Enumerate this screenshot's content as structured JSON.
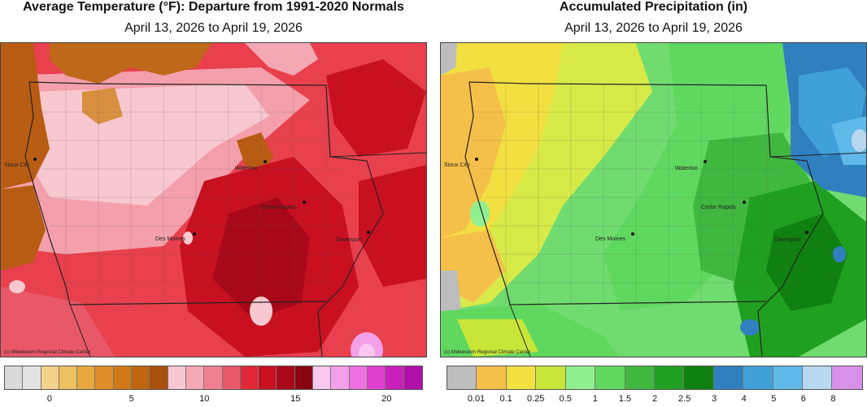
{
  "left_panel": {
    "title": "Average Temperature (°F): Departure from 1991-2020 Normals",
    "subtitle": "April 13, 2026 to April 19, 2026",
    "credit": "(c) Midwestern Regional Climate Center",
    "cities": [
      "Sioux City",
      "Waterloo",
      "Cedar Rapids",
      "Des Moines",
      "Davenport"
    ],
    "legend_colors": [
      "#d9d9d9",
      "#e3e3e3",
      "#f2d28a",
      "#efc060",
      "#e8a840",
      "#e08e28",
      "#d07818",
      "#bf6410",
      "#a8500c",
      "#f8c8d0",
      "#f4a8b4",
      "#ee8090",
      "#e85868",
      "#e02838",
      "#c81020",
      "#a80818",
      "#880410",
      "#f8c8f0",
      "#f4a0e8",
      "#ee70e0",
      "#e040d0",
      "#c820b8",
      "#b010a8"
    ],
    "legend_ticks": [
      "0",
      "5",
      "10",
      "15",
      "20"
    ],
    "legend_tick_positions_idx": [
      2,
      7,
      11,
      16,
      21
    ]
  },
  "right_panel": {
    "title": "Accumulated Precipitation (in)",
    "subtitle": "April 13, 2026 to April 19, 2026",
    "credit": "(c) Midwestern Regional Climate Center",
    "cities": [
      "Sioux City",
      "Waterloo",
      "Cedar Rapids",
      "Des Moines",
      "Davenport"
    ],
    "legend_colors": [
      "#bdbdbd",
      "#f5c04a",
      "#f2e040",
      "#c8e638",
      "#90f090",
      "#60d860",
      "#40b840",
      "#20a020",
      "#108010",
      "#3080c0",
      "#40a0d8",
      "#60b8e8",
      "#b8d8f0",
      "#d890e8"
    ],
    "legend_ticks": [
      "0.01",
      "0.1",
      "0.25",
      "0.5",
      "1",
      "1.5",
      "2",
      "2.5",
      "3",
      "4",
      "5",
      "6",
      "8"
    ]
  }
}
